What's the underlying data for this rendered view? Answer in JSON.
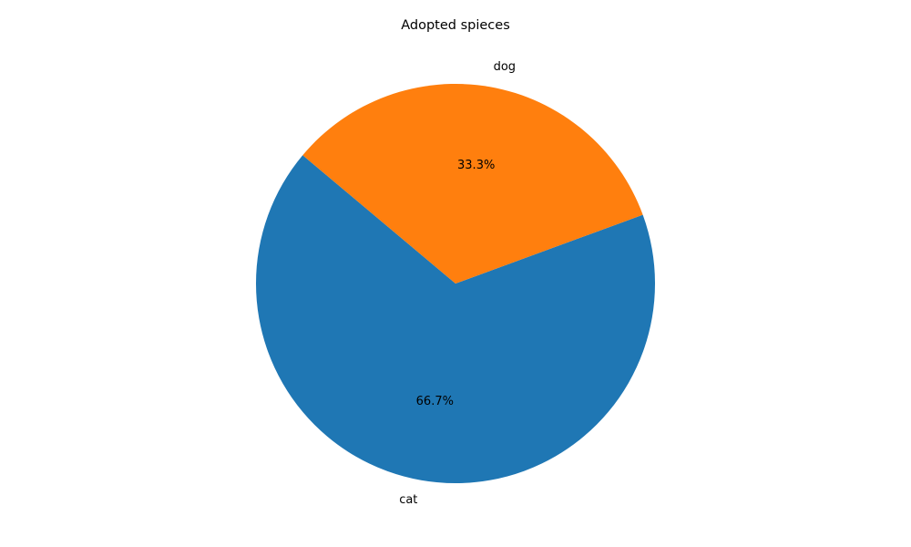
{
  "chart_data": {
    "type": "pie",
    "title": "Adopted spieces",
    "categories": [
      "cat",
      "dog"
    ],
    "values": [
      66.7,
      33.3
    ],
    "percent_labels": [
      "66.7%",
      "33.3%"
    ],
    "colors": [
      "#1f77b4",
      "#ff7f0e"
    ],
    "start_angle_deg": 140,
    "direction": "counterclockwise",
    "legend": "none"
  }
}
